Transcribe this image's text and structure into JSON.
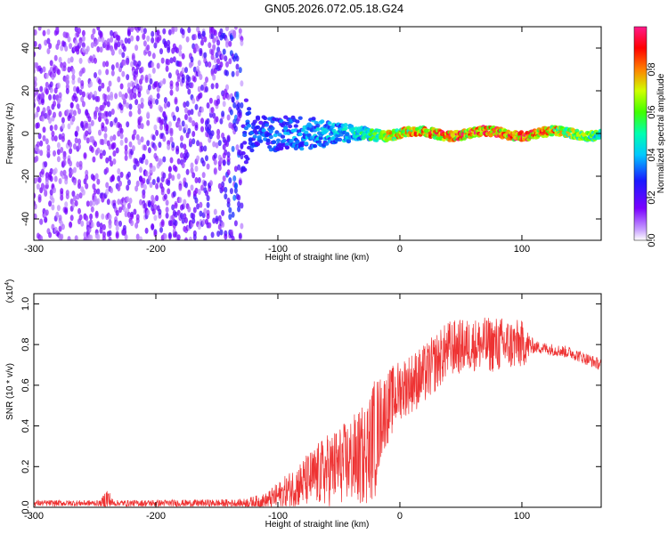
{
  "title": "GN05.2026.072.05.18.G24",
  "chart_data": [
    {
      "type": "heatmap",
      "xlabel": "Height of straight line (km)",
      "ylabel": "Frequency (Hz)",
      "xlim": [
        -300,
        165
      ],
      "ylim": [
        -50,
        50
      ],
      "x_ticks": [
        -300,
        -200,
        -100,
        0,
        100
      ],
      "y_ticks": [
        -40,
        -20,
        0,
        20,
        40
      ],
      "colorbar": {
        "label": "Normalized spectral amplitude",
        "range": [
          0,
          1
        ],
        "ticks": [
          "0.0",
          "0.2",
          "0.4",
          "0.6",
          "0.8"
        ],
        "colormap": "rainbow (violet → blue → cyan → green → yellow → red → magenta)"
      },
      "ridge": {
        "center_frequency_hz": 0,
        "description_points": [
          {
            "x": -270,
            "spread_hz": 50,
            "peak_amplitude": 0.1
          },
          {
            "x": -150,
            "spread_hz": 50,
            "peak_amplitude": 0.15
          },
          {
            "x": -120,
            "spread_hz": 8,
            "peak_amplitude": 0.3
          },
          {
            "x": -80,
            "spread_hz": 8,
            "peak_amplitude": 0.35
          },
          {
            "x": -35,
            "spread_hz": 3,
            "peak_amplitude": 0.45
          },
          {
            "x": 0,
            "spread_hz": 2,
            "peak_amplitude": 0.8
          },
          {
            "x": 50,
            "spread_hz": 2,
            "peak_amplitude": 0.9
          },
          {
            "x": 100,
            "spread_hz": 2,
            "peak_amplitude": 0.95
          },
          {
            "x": 160,
            "spread_hz": 2,
            "peak_amplitude": 0.6
          }
        ]
      }
    },
    {
      "type": "line",
      "xlabel": "Height of straight line (km)",
      "ylabel": "SNR (10 * v/v)",
      "y_multiplier_label": "(x10",
      "y_multiplier_exp": "4",
      "xlim": [
        -300,
        165
      ],
      "ylim": [
        0,
        1.05
      ],
      "x_ticks": [
        -300,
        -200,
        -100,
        0,
        100
      ],
      "y_ticks": [
        "0.0",
        "0.2",
        "0.4",
        "0.6",
        "0.8",
        "1.0"
      ],
      "series": [
        {
          "color": "#ee3333",
          "envelope": [
            {
              "x": -300,
              "mean": 0.02,
              "amp": 0.015
            },
            {
              "x": -245,
              "mean": 0.02,
              "amp": 0.015
            },
            {
              "x": -240,
              "mean": 0.04,
              "amp": 0.07
            },
            {
              "x": -235,
              "mean": 0.02,
              "amp": 0.015
            },
            {
              "x": -130,
              "mean": 0.02,
              "amp": 0.02
            },
            {
              "x": -110,
              "mean": 0.03,
              "amp": 0.04
            },
            {
              "x": -95,
              "mean": 0.07,
              "amp": 0.08
            },
            {
              "x": -80,
              "mean": 0.12,
              "amp": 0.12
            },
            {
              "x": -60,
              "mean": 0.18,
              "amp": 0.18
            },
            {
              "x": -45,
              "mean": 0.22,
              "amp": 0.2
            },
            {
              "x": -30,
              "mean": 0.25,
              "amp": 0.25
            },
            {
              "x": -20,
              "mean": 0.35,
              "amp": 0.3
            },
            {
              "x": -15,
              "mean": 0.45,
              "amp": 0.2
            },
            {
              "x": 0,
              "mean": 0.58,
              "amp": 0.15
            },
            {
              "x": 20,
              "mean": 0.65,
              "amp": 0.15
            },
            {
              "x": 40,
              "mean": 0.78,
              "amp": 0.14
            },
            {
              "x": 60,
              "mean": 0.8,
              "amp": 0.13
            },
            {
              "x": 80,
              "mean": 0.8,
              "amp": 0.14
            },
            {
              "x": 100,
              "mean": 0.8,
              "amp": 0.12
            },
            {
              "x": 110,
              "mean": 0.79,
              "amp": 0.03
            },
            {
              "x": 140,
              "mean": 0.76,
              "amp": 0.03
            },
            {
              "x": 165,
              "mean": 0.7,
              "amp": 0.03
            }
          ]
        }
      ]
    }
  ]
}
